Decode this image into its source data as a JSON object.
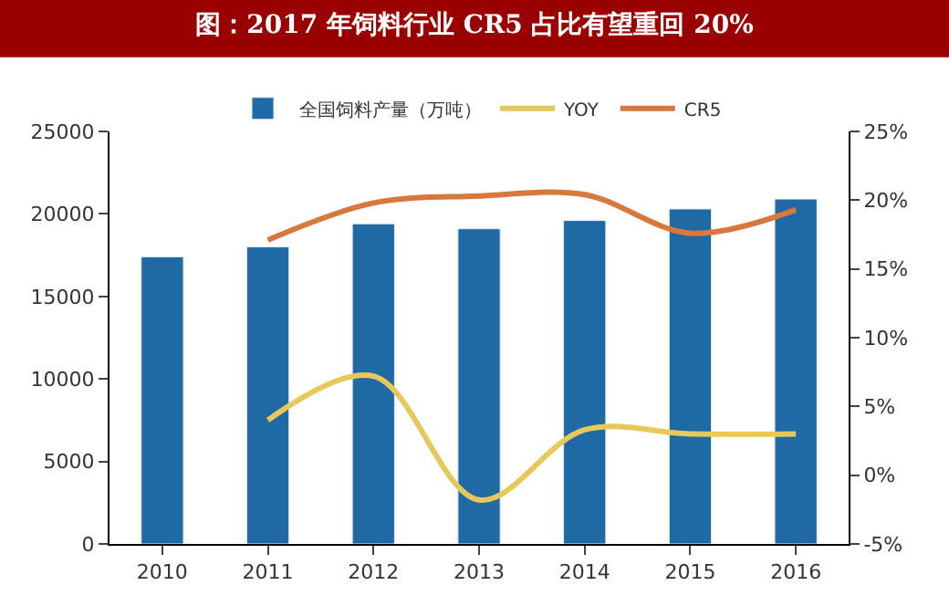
{
  "chart_data": {
    "type": "bar",
    "title": "图：2017 年饲料行业 CR5 占比有望重回 20%",
    "categories": [
      "2010",
      "2011",
      "2012",
      "2013",
      "2014",
      "2015",
      "2016"
    ],
    "series": [
      {
        "name": "全国饲料产量（万吨）",
        "color": "#1f69a4",
        "values": [
          17400,
          18000,
          19400,
          19100,
          19600,
          20300,
          20900
        ]
      },
      {
        "name": "YOY",
        "type": "line",
        "axis": "y2",
        "color": "#e8c85a",
        "values": [
          null,
          4.0,
          7.2,
          -1.8,
          3.3,
          3.0,
          3.0
        ]
      },
      {
        "name": "CR5",
        "type": "line",
        "axis": "y2",
        "color": "#d8783a",
        "values": [
          null,
          17.1,
          19.8,
          20.3,
          20.4,
          17.6,
          19.3
        ]
      }
    ],
    "ylim": [
      0,
      25000
    ],
    "yticks": [
      0,
      5000,
      10000,
      15000,
      20000,
      25000
    ],
    "y2lim": [
      -5,
      25
    ],
    "y2ticks": [
      {
        "value": -5,
        "label": "-5%"
      },
      {
        "value": 0,
        "label": "0%"
      },
      {
        "value": 5,
        "label": "5%"
      },
      {
        "value": 10,
        "label": "10%"
      },
      {
        "value": 15,
        "label": "15%"
      },
      {
        "value": 20,
        "label": "20%"
      },
      {
        "value": 25,
        "label": "25%"
      }
    ],
    "legend": "top",
    "marker": "none"
  }
}
